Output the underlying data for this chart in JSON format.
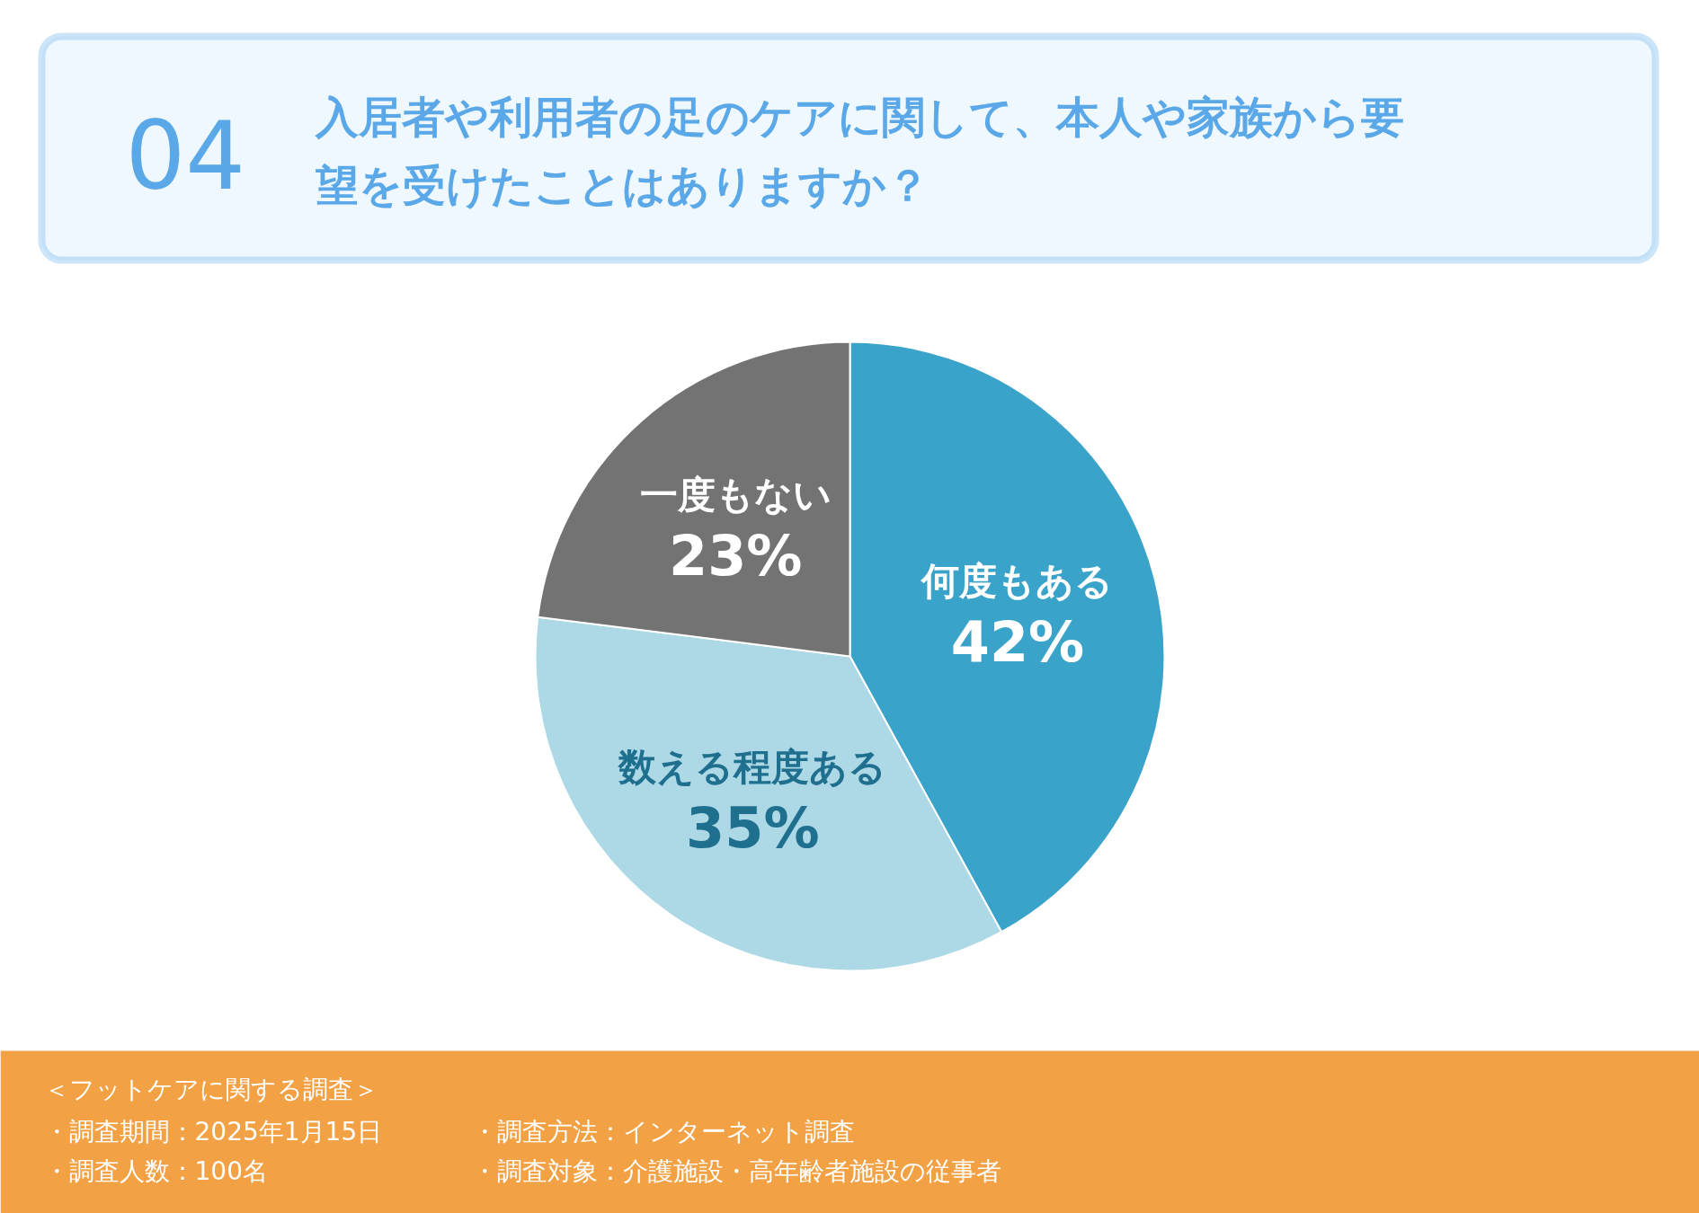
{
  "chart_data": {
    "type": "pie",
    "subtitle": "04",
    "title": "入居者や利用者の足のケアに関して、本人や家族から要望を受けたことはありますか？",
    "categories": [
      "何度もある",
      "数える程度ある",
      "一度もない"
    ],
    "values": [
      42,
      35,
      23
    ],
    "value_labels": [
      "42%",
      "35%",
      "23%"
    ],
    "colors": [
      "#3aa3c9",
      "#add8e6",
      "#737373"
    ],
    "legend": false,
    "annotations": [
      "＜フットケアに関する調査＞",
      "・調査期間：2025年1月15日",
      "・調査方法：インターネット調査",
      "・調査人数：100名",
      "・調査対象：介護施設・高年齢者施設の従事者"
    ]
  }
}
